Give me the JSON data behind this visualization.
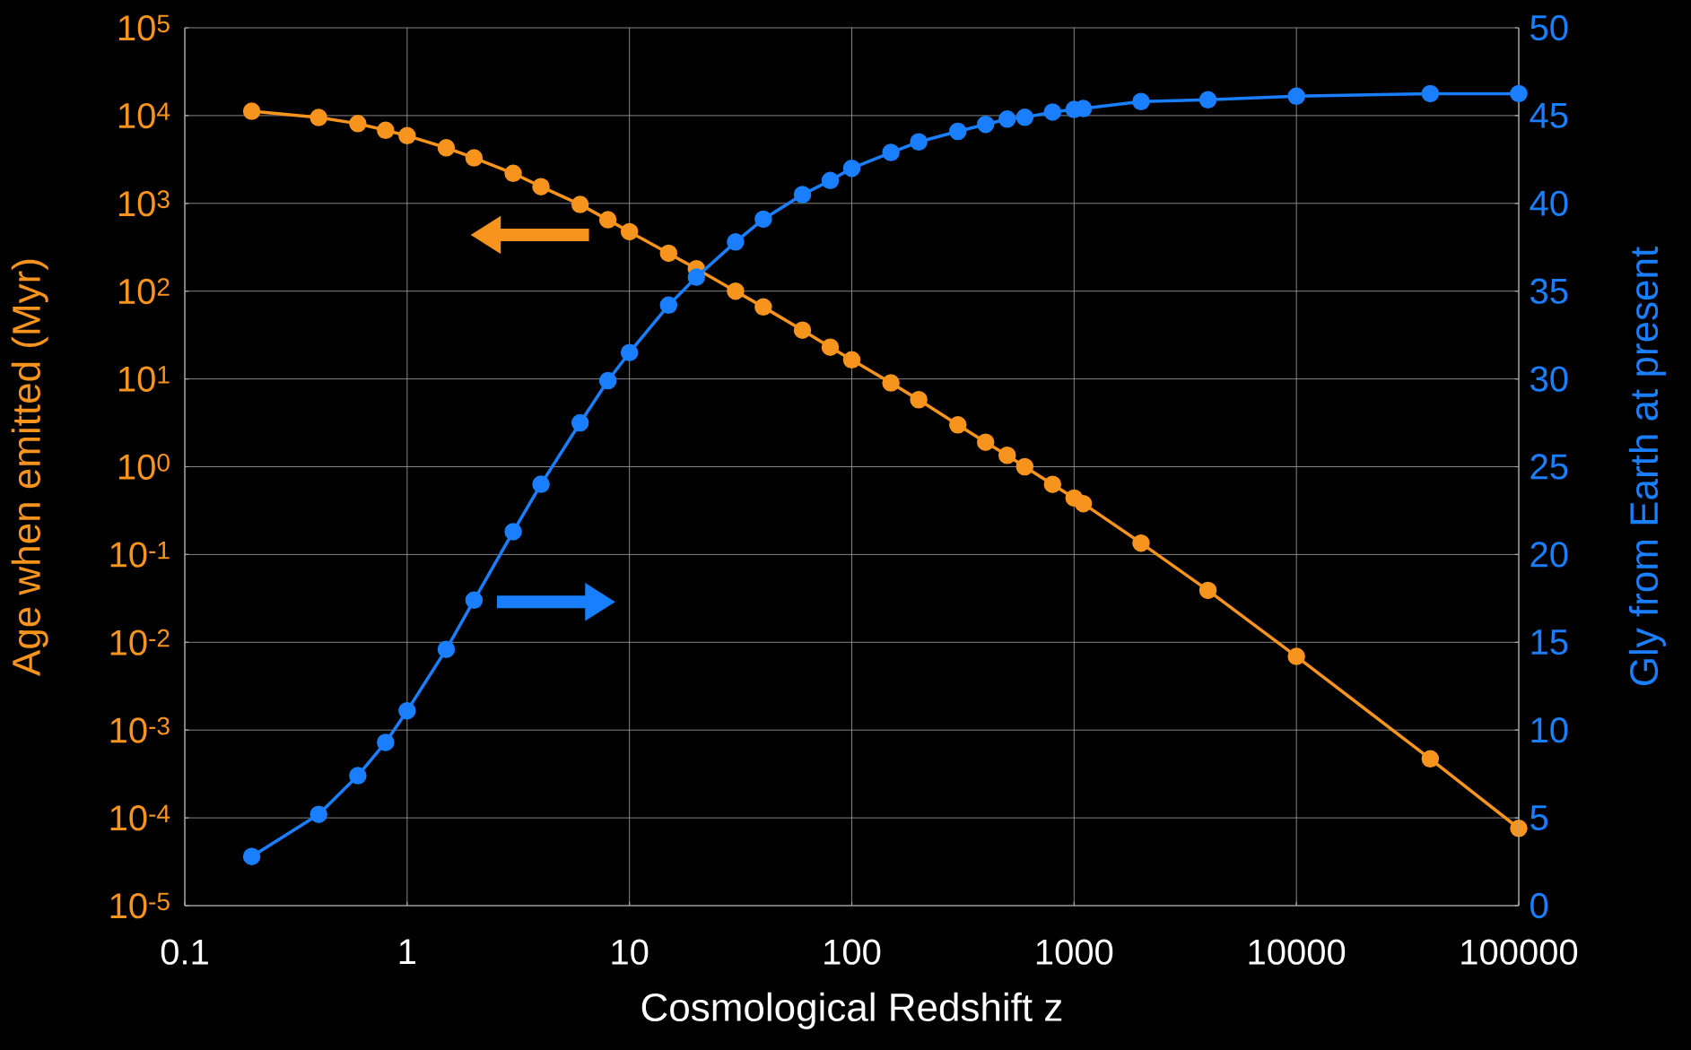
{
  "chart_data": {
    "type": "line",
    "xlabel": "Cosmological Redshift z",
    "ylabel": "Age when emitted (Myr)",
    "y2label": "Gly from Earth at present",
    "x": [
      0.2,
      0.4,
      0.6,
      0.8,
      1,
      1.5,
      2,
      3,
      4,
      6,
      8,
      10,
      15,
      20,
      30,
      40,
      60,
      80,
      100,
      150,
      200,
      300,
      400,
      500,
      600,
      800,
      1000,
      1100,
      2000,
      4000,
      10000,
      40000,
      100000
    ],
    "series": [
      {
        "color": "#f7941d",
        "values": [
          11200,
          9500,
          8100,
          6800,
          5900,
          4300,
          3300,
          2200,
          1550,
          970,
          650,
          475,
          270,
          180,
          100,
          66,
          36,
          23,
          16.5,
          9,
          5.8,
          3.0,
          1.9,
          1.35,
          1.0,
          0.63,
          0.44,
          0.38,
          0.135,
          0.039,
          0.0069,
          0.00047,
          7.6e-05
        ]
      },
      {
        "color": "#1a7fff",
        "axis": "y2",
        "values": [
          2.8,
          5.2,
          7.4,
          9.3,
          11.1,
          14.6,
          17.4,
          21.3,
          24.0,
          27.5,
          29.9,
          31.5,
          34.2,
          35.8,
          37.8,
          39.1,
          40.5,
          41.3,
          42.0,
          42.9,
          43.5,
          44.1,
          44.5,
          44.8,
          44.9,
          45.2,
          45.35,
          45.4,
          45.8,
          45.9,
          46.1,
          46.25,
          46.25
        ]
      }
    ],
    "xlim": [
      0.1,
      100000
    ],
    "xticks": [
      0.1,
      1,
      10,
      100,
      1000,
      10000,
      100000
    ],
    "ylim": [
      1e-05,
      100000
    ],
    "yticks": [
      {
        "value": 1e-05,
        "label": "10$^{-5}$"
      },
      {
        "value": 0.0001,
        "label": "10$^{-4}$"
      },
      {
        "value": 0.001,
        "label": "10$^{-3}$"
      },
      {
        "value": 0.01,
        "label": "10$^{-2}$"
      },
      {
        "value": 0.1,
        "label": "10$^{-1}$"
      },
      {
        "value": 1,
        "label": "10$^{0}$"
      },
      {
        "value": 10,
        "label": "10$^{1}$"
      },
      {
        "value": 100,
        "label": "10$^{2}$"
      },
      {
        "value": 1000,
        "label": "10$^{3}$"
      },
      {
        "value": 10000,
        "label": "10$^{4}$"
      },
      {
        "value": 100000,
        "label": "10$^{5}$"
      }
    ],
    "y2lim": [
      0,
      50
    ],
    "y2ticks": [
      0,
      5,
      10,
      15,
      20,
      25,
      30,
      35,
      40,
      45,
      50
    ],
    "log": "xy",
    "grid": true,
    "marker": "circle",
    "line_style": "solid"
  }
}
